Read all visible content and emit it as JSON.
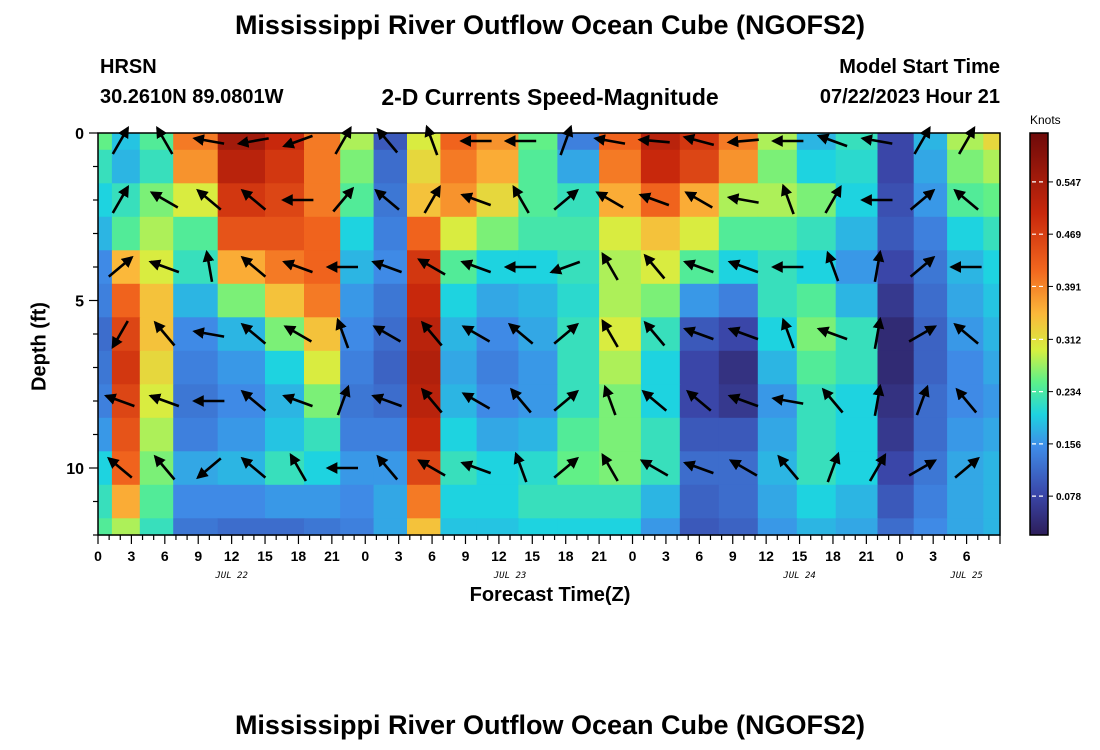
{
  "header": {
    "title": "Mississippi River Outflow Ocean Cube (NGOFS2)",
    "station": "HRSN",
    "coords": "30.2610N  89.0801W",
    "chart_title": "2-D Currents Speed-Magnitude",
    "model_label": "Model Start Time",
    "model_time": "07/22/2023 Hour 21"
  },
  "footer": {
    "title": "Mississippi River Outflow Ocean Cube (NGOFS2)"
  },
  "chart_data": {
    "type": "heatmap",
    "title": "2-D Currents Speed-Magnitude",
    "xlabel": "Forecast Time(Z)",
    "ylabel": "Depth (ft)",
    "x_range_hours": [
      0,
      81
    ],
    "y_range_ft": [
      0,
      12
    ],
    "y_ticks": [
      "0",
      "5",
      "10"
    ],
    "x_tick_labels": [
      "0",
      "3",
      "6",
      "9",
      "12",
      "15",
      "18",
      "21",
      "0",
      "3",
      "6",
      "9",
      "12",
      "15",
      "18",
      "21",
      "0",
      "3",
      "6",
      "9",
      "12",
      "15",
      "18",
      "21",
      "0",
      "3",
      "6"
    ],
    "date_labels": [
      {
        "text": "JUL 22",
        "hour": 12
      },
      {
        "text": "JUL 23",
        "hour": 37
      },
      {
        "text": "JUL 24",
        "hour": 63
      },
      {
        "text": "JUL 25",
        "hour": 78
      }
    ],
    "colorbar": {
      "unit": "Knots",
      "min": 0.02,
      "max": 0.62,
      "ticks": [
        "0.078",
        "0.156",
        "0.234",
        "0.312",
        "0.391",
        "0.469",
        "0.547"
      ],
      "tick_values": [
        0.078,
        0.156,
        0.234,
        0.312,
        0.391,
        0.469,
        0.547
      ]
    },
    "grid": {
      "times_h": [
        0,
        2.5,
        5,
        8.5,
        13,
        17,
        20,
        23.5,
        26,
        29.5,
        32,
        36,
        39.5,
        43,
        47,
        50.5,
        54,
        57.5,
        61,
        64.5,
        68,
        72,
        74.5,
        78,
        81
      ],
      "depths_ft": [
        0,
        1,
        2,
        3,
        4,
        5,
        6,
        7,
        8,
        9,
        10,
        11,
        12
      ],
      "speeds_knots": [
        [
          0.25,
          0.19,
          0.24,
          0.4,
          0.55,
          0.5,
          0.4,
          0.28,
          0.1,
          0.3,
          0.42,
          0.38,
          0.25,
          0.14,
          0.42,
          0.52,
          0.48,
          0.4,
          0.28,
          0.18,
          0.22,
          0.08,
          0.18,
          0.28,
          0.32
        ],
        [
          0.22,
          0.18,
          0.22,
          0.38,
          0.52,
          0.48,
          0.4,
          0.26,
          0.12,
          0.32,
          0.4,
          0.36,
          0.24,
          0.17,
          0.4,
          0.5,
          0.46,
          0.38,
          0.26,
          0.2,
          0.21,
          0.08,
          0.17,
          0.26,
          0.28
        ],
        [
          0.2,
          0.22,
          0.26,
          0.3,
          0.48,
          0.46,
          0.4,
          0.24,
          0.13,
          0.34,
          0.38,
          0.32,
          0.24,
          0.22,
          0.36,
          0.42,
          0.36,
          0.28,
          0.28,
          0.26,
          0.2,
          0.09,
          0.16,
          0.24,
          0.25
        ],
        [
          0.18,
          0.24,
          0.28,
          0.24,
          0.44,
          0.44,
          0.42,
          0.2,
          0.14,
          0.42,
          0.3,
          0.26,
          0.23,
          0.23,
          0.3,
          0.34,
          0.3,
          0.24,
          0.24,
          0.22,
          0.18,
          0.1,
          0.14,
          0.2,
          0.22
        ],
        [
          0.15,
          0.35,
          0.3,
          0.22,
          0.36,
          0.4,
          0.42,
          0.18,
          0.15,
          0.48,
          0.24,
          0.2,
          0.2,
          0.22,
          0.28,
          0.3,
          0.24,
          0.2,
          0.22,
          0.2,
          0.16,
          0.08,
          0.13,
          0.18,
          0.2
        ],
        [
          0.14,
          0.42,
          0.34,
          0.18,
          0.26,
          0.34,
          0.4,
          0.16,
          0.13,
          0.5,
          0.2,
          0.17,
          0.18,
          0.21,
          0.28,
          0.26,
          0.16,
          0.14,
          0.22,
          0.24,
          0.18,
          0.06,
          0.12,
          0.17,
          0.19
        ],
        [
          0.12,
          0.46,
          0.34,
          0.15,
          0.18,
          0.26,
          0.34,
          0.15,
          0.12,
          0.52,
          0.18,
          0.15,
          0.17,
          0.22,
          0.3,
          0.22,
          0.1,
          0.08,
          0.2,
          0.26,
          0.22,
          0.04,
          0.11,
          0.16,
          0.18
        ],
        [
          0.13,
          0.48,
          0.32,
          0.14,
          0.16,
          0.2,
          0.3,
          0.14,
          0.11,
          0.53,
          0.17,
          0.14,
          0.16,
          0.22,
          0.28,
          0.2,
          0.08,
          0.05,
          0.18,
          0.24,
          0.22,
          0.04,
          0.11,
          0.15,
          0.17
        ],
        [
          0.14,
          0.46,
          0.3,
          0.13,
          0.15,
          0.18,
          0.26,
          0.13,
          0.12,
          0.52,
          0.18,
          0.15,
          0.16,
          0.22,
          0.26,
          0.2,
          0.08,
          0.06,
          0.16,
          0.22,
          0.2,
          0.05,
          0.12,
          0.15,
          0.16
        ],
        [
          0.16,
          0.44,
          0.28,
          0.14,
          0.16,
          0.19,
          0.22,
          0.14,
          0.14,
          0.5,
          0.2,
          0.17,
          0.18,
          0.24,
          0.26,
          0.22,
          0.1,
          0.1,
          0.17,
          0.22,
          0.2,
          0.06,
          0.12,
          0.16,
          0.17
        ],
        [
          0.2,
          0.42,
          0.26,
          0.17,
          0.18,
          0.22,
          0.2,
          0.16,
          0.16,
          0.46,
          0.22,
          0.2,
          0.21,
          0.25,
          0.26,
          0.22,
          0.12,
          0.12,
          0.18,
          0.22,
          0.2,
          0.08,
          0.13,
          0.17,
          0.18
        ],
        [
          0.22,
          0.36,
          0.24,
          0.15,
          0.15,
          0.16,
          0.16,
          0.15,
          0.17,
          0.4,
          0.2,
          0.2,
          0.22,
          0.22,
          0.22,
          0.18,
          0.11,
          0.12,
          0.17,
          0.2,
          0.18,
          0.1,
          0.14,
          0.17,
          0.18
        ],
        [
          0.24,
          0.28,
          0.22,
          0.13,
          0.12,
          0.12,
          0.13,
          0.14,
          0.17,
          0.34,
          0.19,
          0.19,
          0.2,
          0.2,
          0.2,
          0.16,
          0.1,
          0.11,
          0.16,
          0.18,
          0.17,
          0.12,
          0.15,
          0.17,
          0.18
        ]
      ]
    },
    "vectors": {
      "rows_ft": [
        0,
        2,
        4,
        6,
        8,
        10
      ],
      "times_h": [
        2,
        6,
        10,
        14,
        18,
        22,
        26,
        30,
        34,
        38,
        42,
        46,
        50,
        54,
        58,
        62,
        66,
        70,
        74,
        78
      ],
      "directions_deg": [
        [
          300,
          240,
          190,
          170,
          160,
          300,
          230,
          250,
          180,
          180,
          290,
          190,
          185,
          195,
          175,
          180,
          200,
          190,
          300,
          300
        ],
        [
          300,
          210,
          220,
          220,
          180,
          310,
          220,
          300,
          200,
          240,
          320,
          210,
          200,
          210,
          190,
          250,
          300,
          180,
          320,
          220
        ],
        [
          320,
          200,
          260,
          220,
          200,
          180,
          200,
          210,
          200,
          180,
          160,
          240,
          230,
          200,
          200,
          180,
          250,
          280,
          320,
          180
        ],
        [
          120,
          230,
          190,
          220,
          210,
          250,
          210,
          230,
          210,
          220,
          320,
          240,
          230,
          200,
          200,
          250,
          200,
          280,
          330,
          220
        ],
        [
          200,
          200,
          180,
          220,
          200,
          290,
          200,
          230,
          210,
          230,
          320,
          250,
          220,
          220,
          200,
          190,
          230,
          280,
          290,
          230
        ],
        [
          220,
          230,
          140,
          220,
          240,
          180,
          230,
          210,
          200,
          250,
          320,
          240,
          210,
          200,
          210,
          230,
          290,
          300,
          330,
          320
        ]
      ]
    }
  }
}
